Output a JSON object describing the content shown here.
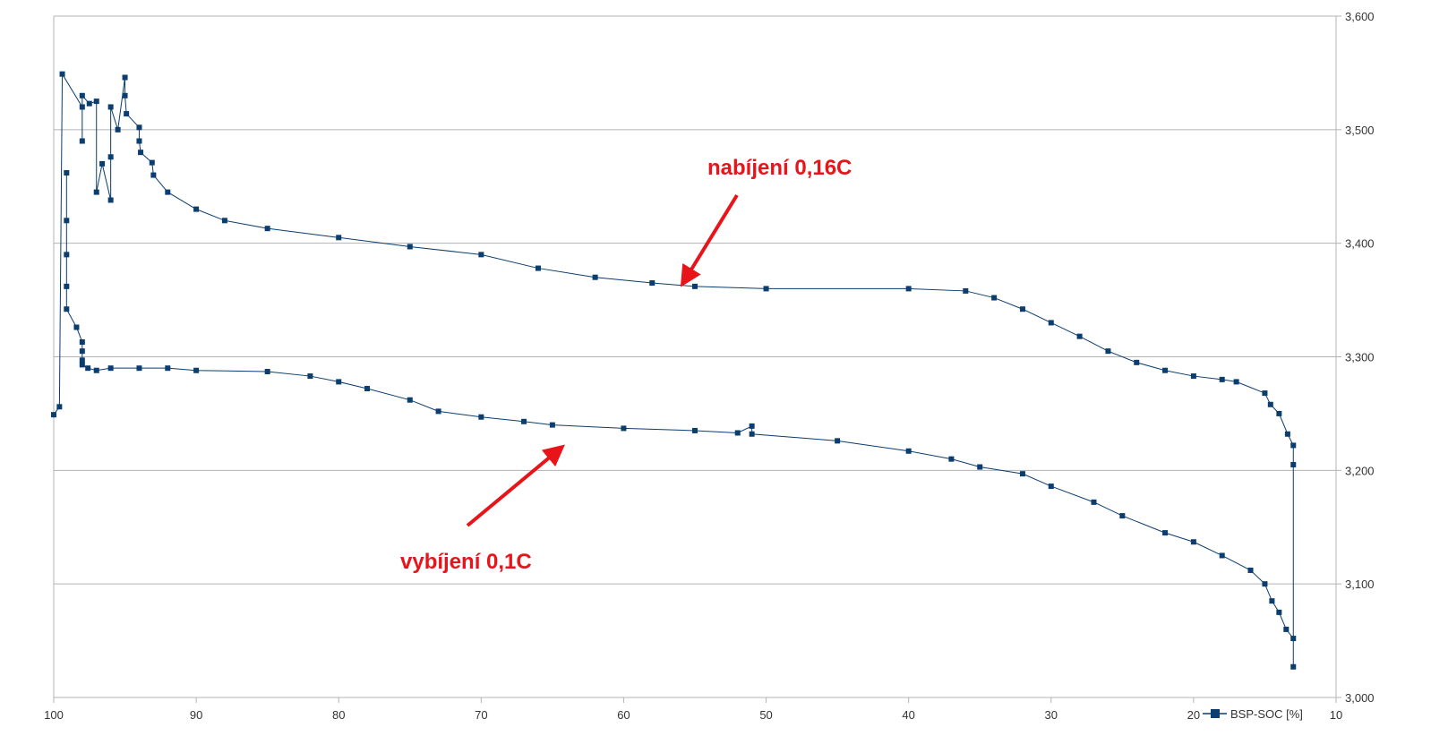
{
  "chart_data": {
    "type": "line",
    "title": "",
    "xlabel": "",
    "ylabel": "",
    "xlim": [
      100,
      10
    ],
    "ylim": [
      3.0,
      3.6
    ],
    "x_reversed": true,
    "y_axis_side": "right",
    "grid": "horizontal",
    "x_ticks": [
      "100",
      "90",
      "80",
      "70",
      "60",
      "50",
      "40",
      "30",
      "20",
      "10"
    ],
    "x_tick_values": [
      100,
      90,
      80,
      70,
      60,
      50,
      40,
      30,
      20,
      10
    ],
    "y_ticks": [
      "3,000",
      "3,100",
      "3,200",
      "3,300",
      "3,400",
      "3,500",
      "3,600"
    ],
    "y_tick_values": [
      3.0,
      3.1,
      3.2,
      3.3,
      3.4,
      3.5,
      3.6
    ],
    "legend": {
      "placement": "bottom-right",
      "entries": [
        "BSP-SOC [%]"
      ]
    },
    "series": [
      {
        "name": "BSP-SOC [%]",
        "color": "#0b3d6e",
        "marker": "square",
        "points": [
          [
            99.1,
            3.462
          ],
          [
            99.1,
            3.42
          ],
          [
            99.1,
            3.39
          ],
          [
            99.1,
            3.362
          ],
          [
            99.1,
            3.342
          ],
          [
            98.4,
            3.326
          ],
          [
            98.0,
            3.313
          ],
          [
            98.0,
            3.305
          ],
          [
            98.0,
            3.297
          ],
          [
            98.0,
            3.293
          ],
          [
            97.6,
            3.29
          ],
          [
            97.0,
            3.288
          ],
          [
            96.0,
            3.29
          ],
          [
            94.0,
            3.29
          ],
          [
            92.0,
            3.29
          ],
          [
            90.0,
            3.288
          ],
          [
            85.0,
            3.287
          ],
          [
            82.0,
            3.283
          ],
          [
            80.0,
            3.278
          ],
          [
            78.0,
            3.272
          ],
          [
            75.0,
            3.262
          ],
          [
            73.0,
            3.252
          ],
          [
            70.0,
            3.247
          ],
          [
            67.0,
            3.243
          ],
          [
            65.0,
            3.24
          ],
          [
            60.0,
            3.237
          ],
          [
            55.0,
            3.235
          ],
          [
            52.0,
            3.233
          ],
          [
            51.0,
            3.239
          ],
          [
            51.0,
            3.232
          ],
          [
            45.0,
            3.226
          ],
          [
            40.0,
            3.217
          ],
          [
            37.0,
            3.21
          ],
          [
            35.0,
            3.203
          ],
          [
            32.0,
            3.197
          ],
          [
            30.0,
            3.186
          ],
          [
            27.0,
            3.172
          ],
          [
            25.0,
            3.16
          ],
          [
            22.0,
            3.145
          ],
          [
            20.0,
            3.137
          ],
          [
            18.0,
            3.125
          ],
          [
            16.0,
            3.112
          ],
          [
            15.0,
            3.1
          ],
          [
            14.5,
            3.085
          ],
          [
            14.0,
            3.075
          ],
          [
            13.5,
            3.06
          ],
          [
            13.0,
            3.052
          ],
          [
            13.0,
            3.027
          ],
          [
            13.0,
            3.205
          ],
          [
            13.0,
            3.222
          ],
          [
            13.4,
            3.232
          ],
          [
            14.0,
            3.25
          ],
          [
            14.6,
            3.258
          ],
          [
            15.0,
            3.268
          ],
          [
            17.0,
            3.278
          ],
          [
            18.0,
            3.28
          ],
          [
            20.0,
            3.283
          ],
          [
            22.0,
            3.288
          ],
          [
            24.0,
            3.295
          ],
          [
            26.0,
            3.305
          ],
          [
            28.0,
            3.318
          ],
          [
            30.0,
            3.33
          ],
          [
            32.0,
            3.342
          ],
          [
            34.0,
            3.352
          ],
          [
            36.0,
            3.358
          ],
          [
            40.0,
            3.36
          ],
          [
            50.0,
            3.36
          ],
          [
            55.0,
            3.362
          ],
          [
            58.0,
            3.365
          ],
          [
            62.0,
            3.37
          ],
          [
            66.0,
            3.378
          ],
          [
            70.0,
            3.39
          ],
          [
            75.0,
            3.397
          ],
          [
            80.0,
            3.405
          ],
          [
            85.0,
            3.413
          ],
          [
            88.0,
            3.42
          ],
          [
            90.0,
            3.43
          ],
          [
            92.0,
            3.445
          ],
          [
            93.0,
            3.46
          ],
          [
            93.1,
            3.471
          ],
          [
            93.9,
            3.48
          ],
          [
            94.0,
            3.49
          ],
          [
            94.0,
            3.502
          ],
          [
            94.9,
            3.514
          ],
          [
            95.0,
            3.53
          ],
          [
            95.0,
            3.546
          ],
          [
            95.5,
            3.5
          ],
          [
            96.0,
            3.52
          ],
          [
            96.0,
            3.476
          ],
          [
            96.0,
            3.438
          ],
          [
            96.6,
            3.47
          ],
          [
            97.0,
            3.445
          ],
          [
            97.0,
            3.525
          ],
          [
            97.5,
            3.523
          ],
          [
            98.0,
            3.53
          ],
          [
            98.0,
            3.49
          ],
          [
            98.0,
            3.52
          ],
          [
            99.4,
            3.549
          ],
          [
            99.6,
            3.256
          ],
          [
            100.0,
            3.249
          ]
        ]
      }
    ],
    "annotations": [
      {
        "text": "nabíjení 0,16C",
        "color": "#e8141a",
        "arrow_to": [
          56,
          3.362
        ]
      },
      {
        "text": "vybíjení 0,1C",
        "color": "#e8141a",
        "arrow_to": [
          64,
          3.225
        ]
      }
    ]
  }
}
